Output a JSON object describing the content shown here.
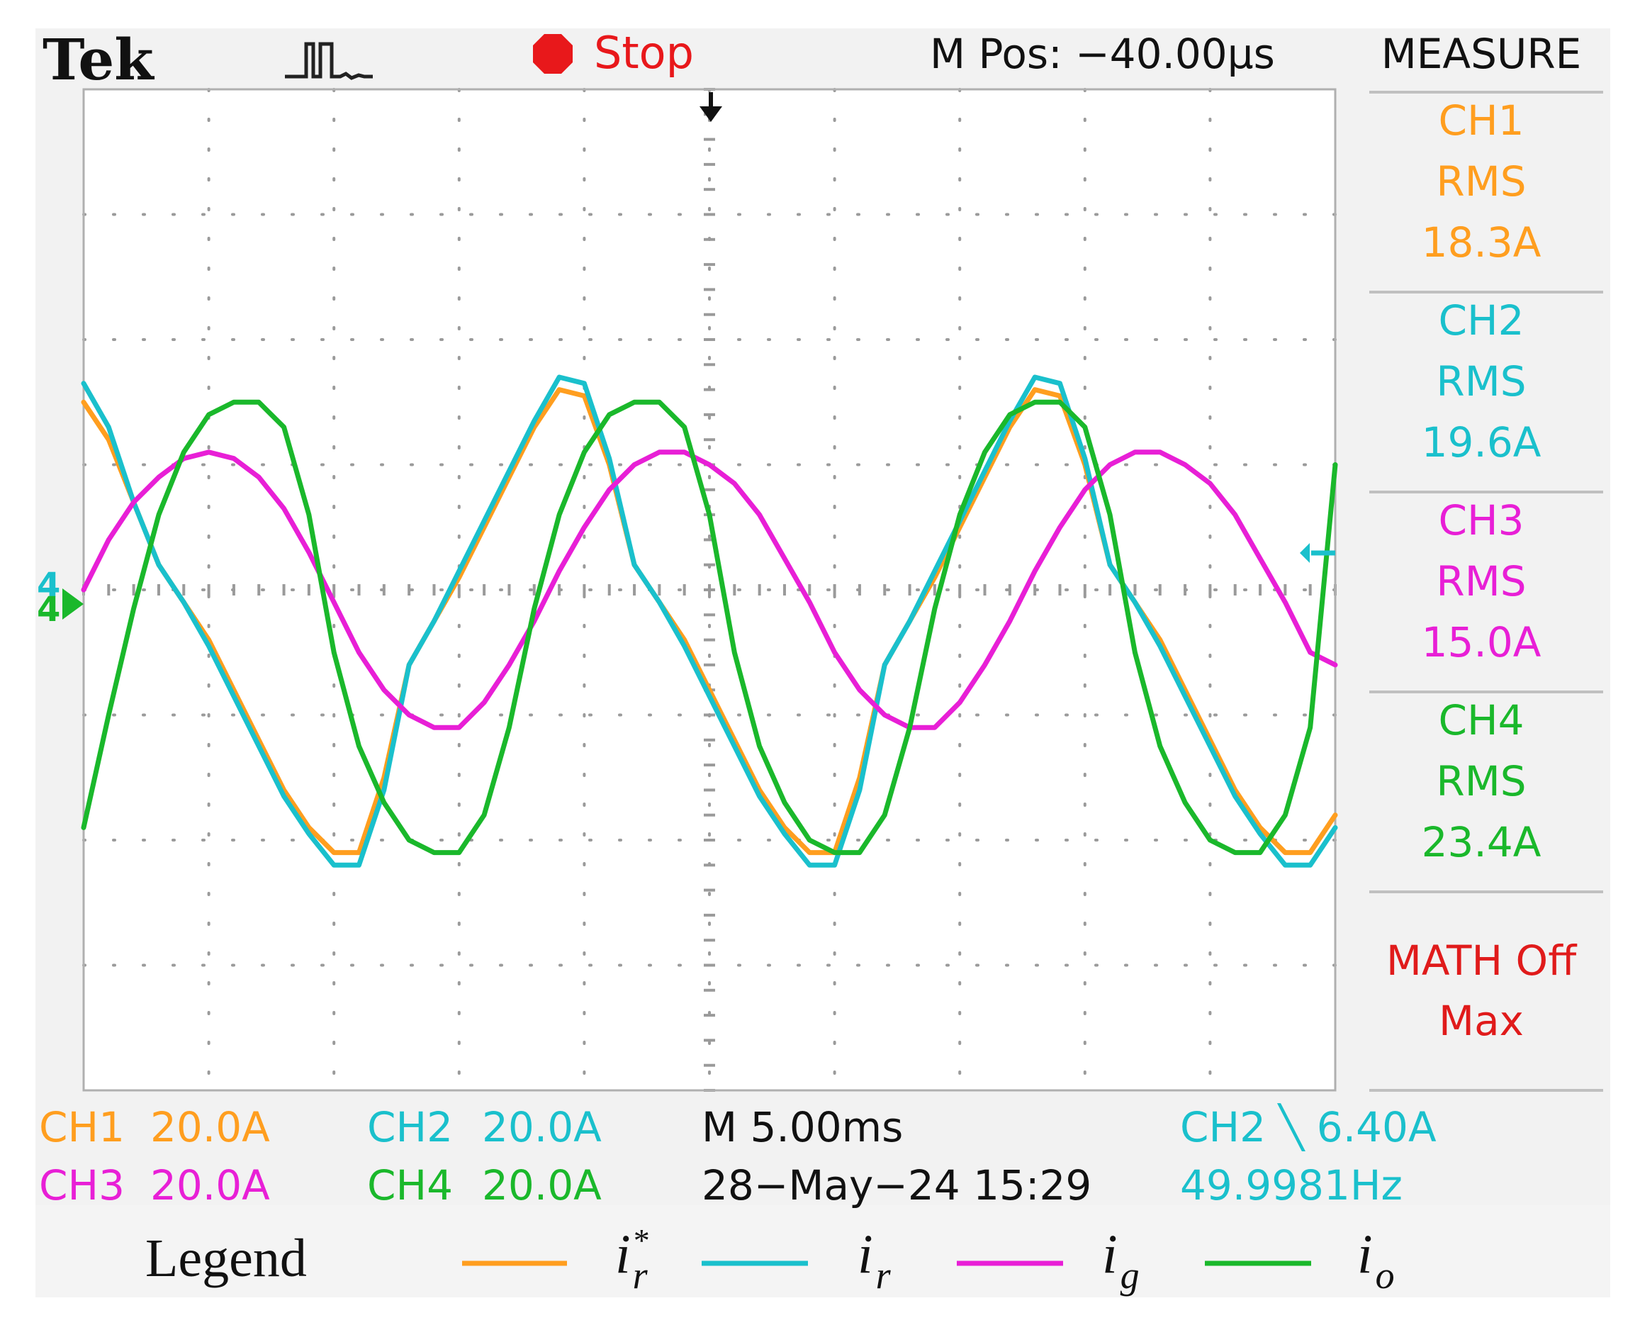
{
  "header": {
    "brand": "Tek",
    "trigger_icon": "pulse-waveform-icon",
    "run_state": "Stop",
    "run_state_icon": "stop-octagon-icon",
    "position": "M Pos: −40.00μs",
    "menu": "MEASURE"
  },
  "measure": [
    {
      "channel": "CH1",
      "type": "RMS",
      "value": "18.3A",
      "color": "#ff9e1f"
    },
    {
      "channel": "CH2",
      "type": "RMS",
      "value": "19.6A",
      "color": "#1ac0cc"
    },
    {
      "channel": "CH3",
      "type": "RMS",
      "value": "15.0A",
      "color": "#e81fd6"
    },
    {
      "channel": "CH4",
      "type": "RMS",
      "value": "23.4A",
      "color": "#1ab82b"
    }
  ],
  "math": {
    "line1": "MATH Off",
    "line2": "Max",
    "color": "#e01b1b"
  },
  "footer": {
    "ch1": {
      "name": "CH1",
      "scale": "20.0A"
    },
    "ch2": {
      "name": "CH2",
      "scale": "20.0A"
    },
    "ch3": {
      "name": "CH3",
      "scale": "20.0A"
    },
    "ch4": {
      "name": "CH4",
      "scale": "20.0A"
    },
    "timebase": "M 5.00ms",
    "datetime": "28−May−24 15:29",
    "trigger": "CH2 ╲ 6.40A",
    "frequency": "49.9981Hz"
  },
  "legend": {
    "title": "Legend",
    "entries": [
      {
        "symbol": "i",
        "sub": "r",
        "sup": "*",
        "color": "#ff9e1f"
      },
      {
        "symbol": "i",
        "sub": "r",
        "sup": "",
        "color": "#1ac0cc"
      },
      {
        "symbol": "i",
        "sub": "g",
        "sup": "",
        "color": "#e81fd6"
      },
      {
        "symbol": "i",
        "sub": "o",
        "sup": "",
        "color": "#1ab82b"
      }
    ]
  },
  "chart_data": {
    "type": "line",
    "xlabel": "",
    "ylabel": "",
    "x_unit": "ms",
    "y_unit": "A",
    "xlim": [
      -25,
      25
    ],
    "ylim": [
      -80,
      80
    ],
    "grid": true,
    "grid_divisions": {
      "x": 10,
      "y": 8
    },
    "x": [
      -25,
      -24,
      -23,
      -22,
      -21,
      -20,
      -19,
      -18,
      -17,
      -16,
      -15,
      -14,
      -13,
      -12,
      -11,
      -10,
      -9,
      -8,
      -7,
      -6,
      -5,
      -4,
      -3,
      -2,
      -1,
      0,
      1,
      2,
      3,
      4,
      5,
      6,
      7,
      8,
      9,
      10,
      11,
      12,
      13,
      14,
      15,
      16,
      17,
      18,
      19,
      20,
      21,
      22,
      23,
      24,
      25
    ],
    "series": [
      {
        "channel": "CH1",
        "color": "#ff9e1f",
        "values": [
          30,
          24,
          14,
          4,
          -2,
          -8,
          -16,
          -24,
          -32,
          -38,
          -42,
          -42,
          -30,
          -12,
          -5,
          2,
          10,
          18,
          26,
          32,
          31,
          20,
          4,
          -2,
          -8,
          -16,
          -24,
          -32,
          -38,
          -42,
          -42,
          -30,
          -12,
          -5,
          2,
          10,
          18,
          26,
          32,
          31,
          20,
          4,
          -2,
          -8,
          -16,
          -24,
          -32,
          -38,
          -42,
          -42,
          -36
        ]
      },
      {
        "channel": "CH2",
        "color": "#1ac0cc",
        "values": [
          33,
          26,
          14,
          4,
          -2,
          -9,
          -17,
          -25,
          -33,
          -39,
          -44,
          -44,
          -32,
          -12,
          -5,
          3,
          11,
          19,
          27,
          34,
          33,
          21,
          4,
          -2,
          -9,
          -17,
          -25,
          -33,
          -39,
          -44,
          -44,
          -32,
          -12,
          -5,
          3,
          11,
          19,
          27,
          34,
          33,
          21,
          4,
          -2,
          -9,
          -17,
          -25,
          -33,
          -39,
          -44,
          -44,
          -38
        ]
      },
      {
        "channel": "CH3",
        "color": "#e81fd6",
        "values": [
          0,
          8,
          14,
          18,
          21,
          22,
          21,
          18,
          13,
          6,
          -2,
          -10,
          -16,
          -20,
          -22,
          -22,
          -18,
          -12,
          -5,
          3,
          10,
          16,
          20,
          22,
          22,
          20,
          17,
          12,
          5,
          -2,
          -10,
          -16,
          -20,
          -22,
          -22,
          -18,
          -12,
          -5,
          3,
          10,
          16,
          20,
          22,
          22,
          20,
          17,
          12,
          5,
          -2,
          -10,
          -12
        ]
      },
      {
        "channel": "CH4",
        "color": "#1ab82b",
        "values": [
          -38,
          -20,
          -3,
          12,
          22,
          28,
          30,
          30,
          26,
          12,
          -10,
          -25,
          -34,
          -40,
          -42,
          -42,
          -36,
          -22,
          -3,
          12,
          22,
          28,
          30,
          30,
          26,
          12,
          -10,
          -25,
          -34,
          -40,
          -42,
          -42,
          -36,
          -22,
          -3,
          12,
          22,
          28,
          30,
          30,
          26,
          12,
          -10,
          -25,
          -34,
          -40,
          -42,
          -42,
          -36,
          -22,
          20
        ]
      }
    ]
  }
}
